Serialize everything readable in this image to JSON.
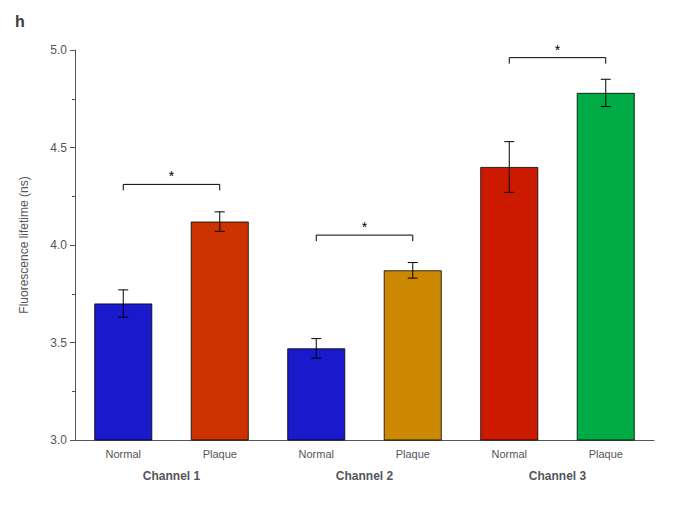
{
  "chart_data": {
    "type": "bar",
    "title": "h",
    "ylabel": "Fluorescence lifetime (ns)",
    "categories": [
      "Channel 1",
      "Channel 2",
      "Channel 3"
    ],
    "series": [
      {
        "name": "Normal",
        "colors": [
          "#1a1acc",
          "#1a1acc",
          "#cc1a00"
        ],
        "values": [
          3.7,
          3.47,
          4.4
        ],
        "errors": [
          0.07,
          0.05,
          0.13
        ]
      },
      {
        "name": "Plaque",
        "colors": [
          "#cc3300",
          "#cc8800",
          "#00aa44"
        ],
        "values": [
          4.12,
          3.87,
          4.78
        ],
        "errors": [
          0.05,
          0.04,
          0.07
        ]
      }
    ],
    "ylim": [
      3.0,
      5.0
    ],
    "yticks": [
      {
        "value": 3.0,
        "label": "3.0"
      },
      {
        "value": 3.5,
        "label": "3.5"
      },
      {
        "value": 4.0,
        "label": "4.0"
      },
      {
        "value": 4.5,
        "label": "4.5"
      },
      {
        "value": 5.0,
        "label": "5.0"
      }
    ],
    "grid": false,
    "annotations": [
      {
        "text": "*",
        "x": "Channel 1",
        "y": 4.28
      },
      {
        "text": "*",
        "x": "Channel 2",
        "y": 4.02
      },
      {
        "text": "*",
        "x": "Channel 3",
        "y": 4.93
      }
    ]
  }
}
